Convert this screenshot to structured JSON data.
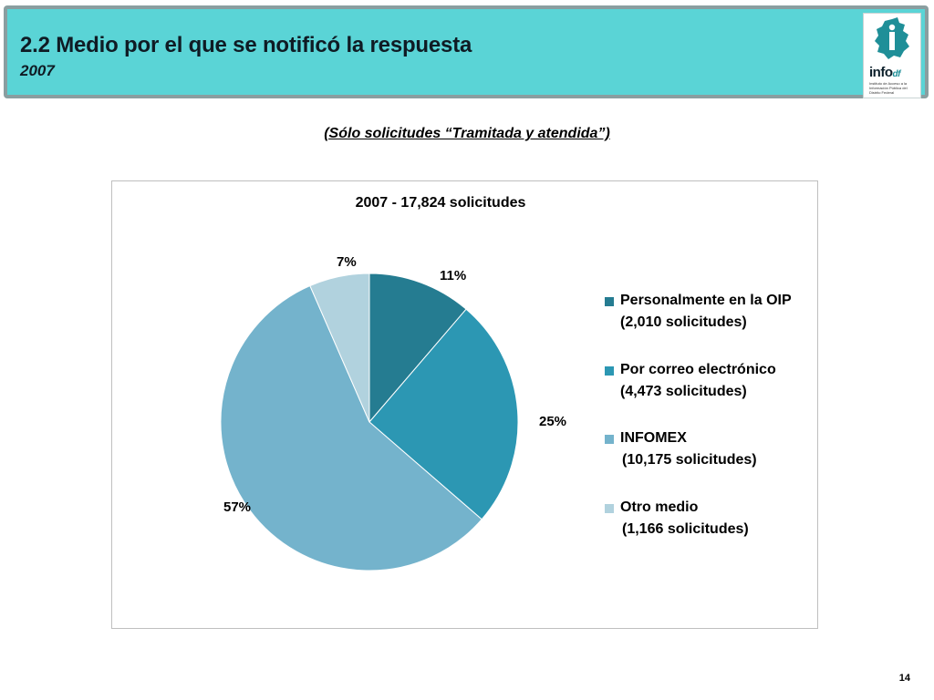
{
  "header": {
    "title": "2.2 Medio por el que se notificó la respuesta",
    "subtitle": "2007",
    "logo": {
      "brand": "info",
      "brand_suffix": "df",
      "caption": "Instituto de Acceso a la Información Pública del Distrito Federal",
      "icon": "df-map-logo-icon"
    }
  },
  "note": "(Sólo solicitudes “Tramitada y atendida”)",
  "chart_data": {
    "type": "pie",
    "title": "2007 - 17,824 solicitudes",
    "legend_position": "right",
    "slices": [
      {
        "label": "Personalmente en la OIP",
        "count_label": "(2,010 solicitudes)",
        "value": 2010,
        "percent_label": "11%",
        "color": "#257c91"
      },
      {
        "label": "Por correo electrónico",
        "count_label": "(4,473 solicitudes)",
        "value": 4473,
        "percent_label": "25%",
        "color": "#2c97b3"
      },
      {
        "label": "INFOMEX",
        "count_label": "(10,175 solicitudes)",
        "value": 10175,
        "percent_label": "57%",
        "color": "#74b3cc"
      },
      {
        "label": "Otro medio",
        "count_label": "(1,166 solicitudes)",
        "value": 1166,
        "percent_label": "7%",
        "color": "#b1d2de"
      }
    ]
  },
  "page_number": "14"
}
